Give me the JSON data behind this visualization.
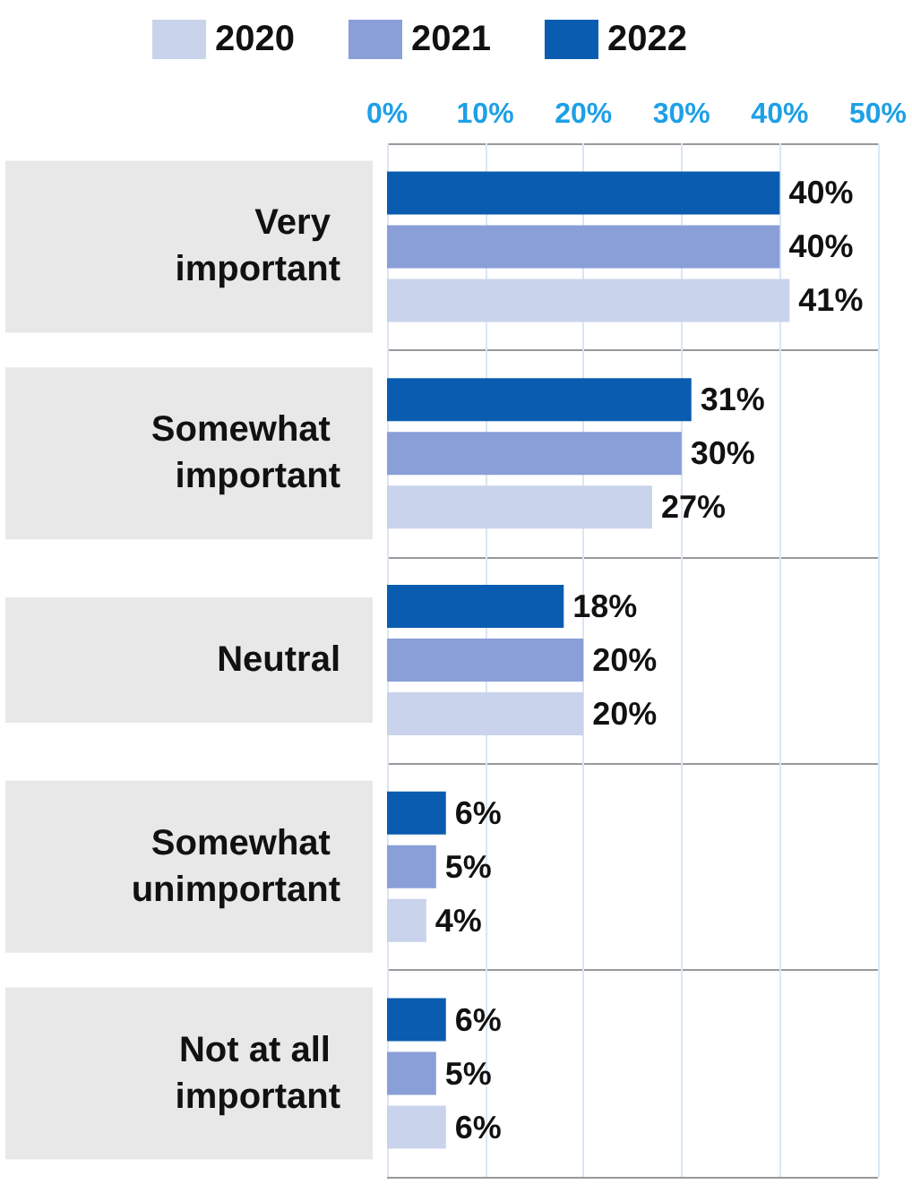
{
  "chart_data": {
    "type": "bar",
    "orientation": "horizontal",
    "categories": [
      "Very important",
      "Somewhat important",
      "Neutral",
      "Somewhat unimportant",
      "Not at all important"
    ],
    "series": [
      {
        "name": "2022",
        "color": "#0a5cb0",
        "values": [
          40,
          31,
          18,
          6,
          6
        ],
        "value_labels": [
          "40%",
          "31%",
          "18%",
          "6%",
          "6%"
        ]
      },
      {
        "name": "2021",
        "color": "#8a9fd8",
        "values": [
          40,
          30,
          20,
          5,
          5
        ],
        "value_labels": [
          "40%",
          "30%",
          "20%",
          "5%",
          "5%"
        ]
      },
      {
        "name": "2020",
        "color": "#c9d3ec",
        "values": [
          41,
          27,
          20,
          4,
          6
        ],
        "value_labels": [
          "41%",
          "27%",
          "20%",
          "4%",
          "6%"
        ]
      }
    ],
    "xlim": [
      0,
      50
    ],
    "xticks": [
      {
        "value": 0,
        "label": "0%"
      },
      {
        "value": 10,
        "label": "10%"
      },
      {
        "value": 20,
        "label": "20%"
      },
      {
        "value": 30,
        "label": "30%"
      },
      {
        "value": 40,
        "label": "40%"
      },
      {
        "value": 50,
        "label": "50%"
      }
    ],
    "grid": "x",
    "legend": "top"
  }
}
